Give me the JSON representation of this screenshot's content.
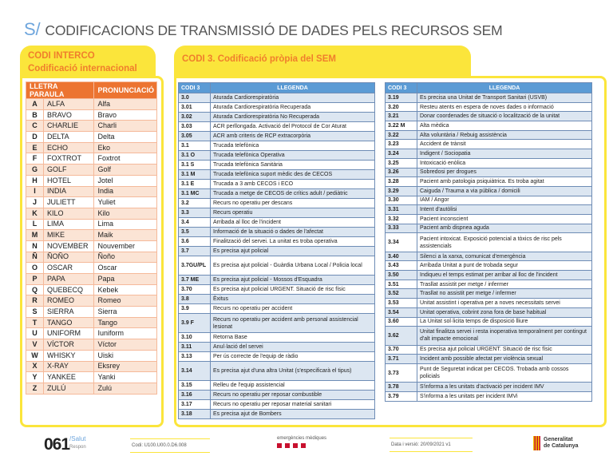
{
  "header": {
    "logo": "S/",
    "title": "CODIFICACIONS DE TRANSMISSIÓ DE DADES PELS RECURSOS SEM"
  },
  "interco": {
    "title1": "CODI INTERCO",
    "title2": "Codificació internacional",
    "col_letter_word": "LLETRA PARAULA",
    "col_pron": "PRONUNCIACIÓ",
    "rows": [
      [
        "A",
        "ALFA",
        "Alfa"
      ],
      [
        "B",
        "BRAVO",
        "Bravo"
      ],
      [
        "C",
        "CHARLIE",
        "Charli"
      ],
      [
        "D",
        "DELTA",
        "Delta"
      ],
      [
        "E",
        "ECHO",
        "Eko"
      ],
      [
        "F",
        "FOXTROT",
        "Foxtrot"
      ],
      [
        "G",
        "GOLF",
        "Golf"
      ],
      [
        "H",
        "HOTEL",
        "Jotel"
      ],
      [
        "I",
        "INDIA",
        "India"
      ],
      [
        "J",
        "JULIETT",
        "Yuliet"
      ],
      [
        "K",
        "KILO",
        "Kilo"
      ],
      [
        "L",
        "LIMA",
        "Lima"
      ],
      [
        "M",
        "MIKE",
        "Maik"
      ],
      [
        "N",
        "NOVEMBER",
        "Nouvember"
      ],
      [
        "Ñ",
        "ÑOÑO",
        "Ñoño"
      ],
      [
        "O",
        "OSCAR",
        "Oscar"
      ],
      [
        "P",
        "PAPA",
        "Papa"
      ],
      [
        "Q",
        "QUEBECQ",
        "Kebek"
      ],
      [
        "R",
        "ROMEO",
        "Romeo"
      ],
      [
        "S",
        "SIERRA",
        "Sierra"
      ],
      [
        "T",
        "TANGO",
        "Tango"
      ],
      [
        "U",
        "UNIFORM",
        "Iuniform"
      ],
      [
        "V",
        "VÍCTOR",
        "Víctor"
      ],
      [
        "W",
        "WHISKY",
        "Uiski"
      ],
      [
        "X",
        "X-RAY",
        "Eksrey"
      ],
      [
        "Y",
        "YANKEE",
        "Yanki"
      ],
      [
        "Z",
        "ZULÚ",
        "Zulú"
      ]
    ]
  },
  "codi3": {
    "title": "CODI 3. Codificació pròpia del SEM",
    "col_code": "CODI 3",
    "col_legend": "LLEGENDA",
    "left": [
      [
        "3.0",
        "Aturada Cardiorespiratòria"
      ],
      [
        "3.01",
        "Aturada Cardiorespiratòria Recuperada"
      ],
      [
        "3.02",
        "Aturada Cardiorespiratòria No Recuperada"
      ],
      [
        "3.03",
        "ACR perllongada. Activació del Protocol de Cor Aturat"
      ],
      [
        "3.05",
        "ACR amb criteris de RCP extracorpòria"
      ],
      [
        "3.1",
        "Trucada telefònica"
      ],
      [
        "3.1 O",
        "Trucada telefònica Operativa"
      ],
      [
        "3.1 S",
        "Trucada telefònica Sanitària"
      ],
      [
        "3.1 M",
        "Trucada telefònica suport mèdic des de CECOS"
      ],
      [
        "3.1 E",
        "Trucada a 3 amb CECOS i ECO"
      ],
      [
        "3.1 MC",
        "Trucada a metge de CECOS de crítics adult / pediàtric"
      ],
      [
        "3.2",
        "Recurs no operatiu per descans"
      ],
      [
        "3.3",
        "Recurs operatiu"
      ],
      [
        "3.4",
        "Arribada al lloc de l'incident"
      ],
      [
        "3.5",
        "Informació de la situació o dades de l'afectat"
      ],
      [
        "3.6",
        "Finalització del servei. La unitat es troba operativa"
      ],
      [
        "3.7",
        "Es precisa ajut policial"
      ],
      [
        "3.7GU/PL",
        "Es precisa ajut policial - Guàrdia Urbana Local / Policia local"
      ],
      [
        "3.7 ME",
        "Es precisa ajut policial - Mossos d'Esquadra"
      ],
      [
        "3.70",
        "Es precisa ajut policial URGENT. Situació de risc físic"
      ],
      [
        "3.8",
        "Èxitus"
      ],
      [
        "3.9",
        "Recurs no operatiu per accident"
      ],
      [
        "3.9 F",
        "Recurs no operatiu per accident amb personal assistencial lesionat"
      ],
      [
        "3.10",
        "Retorna Base"
      ],
      [
        "3.11",
        "Anul·lació del servei"
      ],
      [
        "3.13",
        "Per ús correcte de l'equip de ràdio"
      ],
      [
        "3.14",
        "Es precisa ajut d'una altra Unitat (s'especificarà el tipus)"
      ],
      [
        "3.15",
        "Relleu de l'equip assistencial"
      ],
      [
        "3.16",
        "Recurs no operatiu per reposar combustible"
      ],
      [
        "3.17",
        "Recurs no operatiu per reposar material sanitari"
      ],
      [
        "3.18",
        "Es precisa ajut de Bombers"
      ]
    ],
    "right": [
      [
        "3.19",
        "Es precisa una Unitat de Transport Sanitari (USVB)"
      ],
      [
        "3.20",
        "Resteu atents en espera de noves dades o informació"
      ],
      [
        "3.21",
        "Donar coordenades de situació o localització de la unitat"
      ],
      [
        "3.22 M",
        "Alta mèdica"
      ],
      [
        "3.22",
        "Alta voluntària / Rebuig assistència"
      ],
      [
        "3.23",
        "Accident de trànsit"
      ],
      [
        "3.24",
        "Indigent / Sociopatia"
      ],
      [
        "3.25",
        "Intoxicació enòlica"
      ],
      [
        "3.26",
        "Sobredosi per drogues"
      ],
      [
        "3.28",
        "Pacient amb patologia psiquiàtrica. Es troba agitat"
      ],
      [
        "3.29",
        "Caiguda / Trauma a via pública / domicili"
      ],
      [
        "3.30",
        "IAM / Angor"
      ],
      [
        "3.31",
        "Intent d'autòlisi"
      ],
      [
        "3.32",
        "Pacient inconscient"
      ],
      [
        "3.33",
        "Pacient amb dispnea aguda"
      ],
      [
        "3.34",
        "Pacient intoxicat. Exposició potencial a tòxics de risc pels assistencials"
      ],
      [
        "3.40",
        "Silenci a la xarxa, comunicat d'emergència"
      ],
      [
        "3.43",
        "Arribada Unitat a punt de trobada segur"
      ],
      [
        "3.50",
        "Indiqueu el temps estimat per arribar al lloc de l'incident"
      ],
      [
        "3.51",
        "Trasllat assistit per metge / infermer"
      ],
      [
        "3.52",
        "Trasllat no assistit per metge / infermer"
      ],
      [
        "3.53",
        "Unitat assistint i operativa per a noves necessitats servei"
      ],
      [
        "3.54",
        "Unitat operativa, cobrint zona fora de base habitual"
      ],
      [
        "3.60",
        "La Unitat sol·licita temps de disposició lliure"
      ],
      [
        "3.62",
        "Unitat finalitza servei i resta inoperativa temporalment per contingut d'alt impacte emocional"
      ],
      [
        "3.70",
        "Es precisa ajut policial URGENT. Situació de risc físic"
      ],
      [
        "3.71",
        "Incident amb possible afectat per violència sexual"
      ],
      [
        "3.73",
        "Punt de Seguretat indicat per CECOS. Trobada amb cossos policials"
      ],
      [
        "3.78",
        "S'informa a les unitats d'activació per incident IMV"
      ],
      [
        "3.79",
        "S'informa a les unitats per incident IMVi"
      ]
    ]
  },
  "footer": {
    "logo_num": "061",
    "logo_salut": "/Salut",
    "logo_respon": "Respon",
    "code": "Codi: U100.U00.0.D6.008",
    "em": "emergències mèdiques",
    "date": "Data i versió: 20/09/2021 v1",
    "gen1": "Generalitat",
    "gen2": "de Catalunya"
  },
  "colors": {
    "accent_blue": "#5b9bd5",
    "orange": "#ec7431",
    "yellow": "#fbe53b"
  }
}
